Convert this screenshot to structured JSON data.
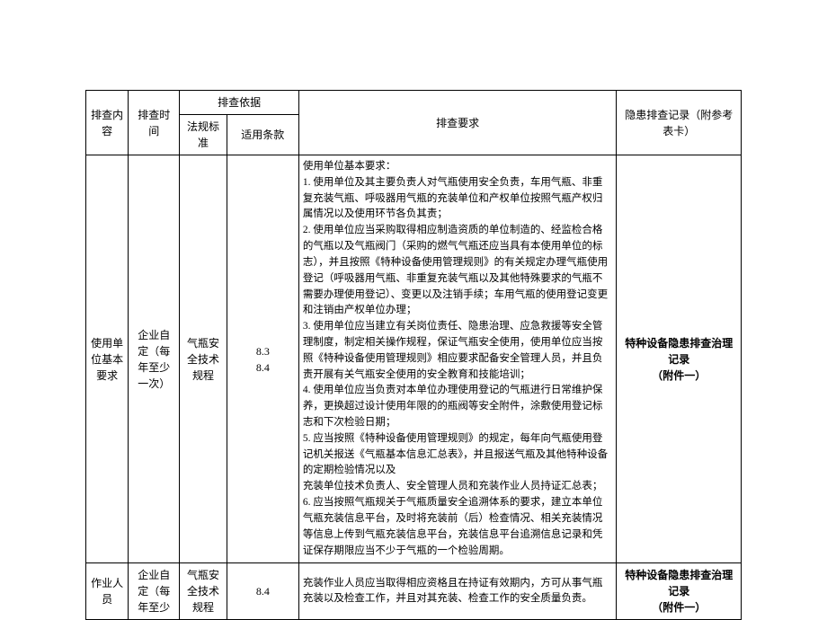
{
  "header": {
    "col1": "排查内容",
    "col2": "排查时间",
    "col3_group": "排查依据",
    "col3a": "法规标准",
    "col3b": "适用条款",
    "col4": "排查要求",
    "col5": "隐患排查记录（附参考表卡）"
  },
  "rows": [
    {
      "content": "使用单位基本要求",
      "time": "企业自定（每年至少一次）",
      "std": "气瓶安全技术规程",
      "clause1": "8.3",
      "clause2": "8.4",
      "req_title": "使用单位基本要求：",
      "req_1": "1. 使用单位及其主要负责人对气瓶使用安全负责，车用气瓶、非重复充装气瓶、呼吸器用气瓶的充装单位和产权单位按照气瓶产权归属情况以及使用环节各负其责；",
      "req_2": "2. 使用单位应当采购取得相应制造资质的单位制造的、经监检合格的气瓶以及气瓶阀门（采购的燃气气瓶还应当具有本使用单位的标志），并且按照《特种设备使用管理规则》的有关规定办理气瓶使用登记（呼吸器用气瓶、非重复充装气瓶以及其他特殊要求的气瓶不需要办理使用登记）、变更以及注销手续；车用气瓶的使用登记变更和注销由产权单位办理；",
      "req_3": "3. 使用单位应当建立有关岗位责任、隐患治理、应急救援等安全管理制度，制定相关操作规程，保证气瓶安全使用，使用单位应当按照《特种设备使用管理规则》相应要求配备安全管理人员，并且负责开展有关气瓶安全使用的安全教育和技能培训；",
      "req_4": "4. 使用单位应当负责对本单位办理使用登记的气瓶进行日常维护保养，更换超过设计使用年限的的瓶阀等安全附件，涂敷使用登记标志和下次检验日期；",
      "req_5": "5. 应当按照《特种设备使用管理规则》的规定，每年向气瓶使用登记机关报送《气瓶基本信息汇总表》，并且报送气瓶及其他特种设备的定期检验情况以及",
      "req_5b": "充装单位技术负责人、安全管理人员和充装作业人员持证汇总表；",
      "req_6": "6. 应当按照气瓶规关于气瓶质量安全追溯体系的要求，建立本单位气瓶充装信息平台，及时将充装前（后）检查情况、相关充装情况等信息上传到气瓶充装信息平台，充装信息平台追溯信息记录和凭证保存期限应当不少于气瓶的一个检验周期。",
      "record_a": "特种设备隐患排查治理记录",
      "record_b": "（附件一）"
    },
    {
      "content": "作业人员",
      "time": "企业自定（每年至少",
      "std": "气瓶安全技术规程",
      "clause": "8.4",
      "req": "充装作业人员应当取得相应资格且在持证有效期内，方可从事气瓶充装以及检查工作，并且对其充装、检查工作的安全质量负责。",
      "record_a": "特种设备隐患排查治理记录",
      "record_b": "（附件一）"
    }
  ]
}
